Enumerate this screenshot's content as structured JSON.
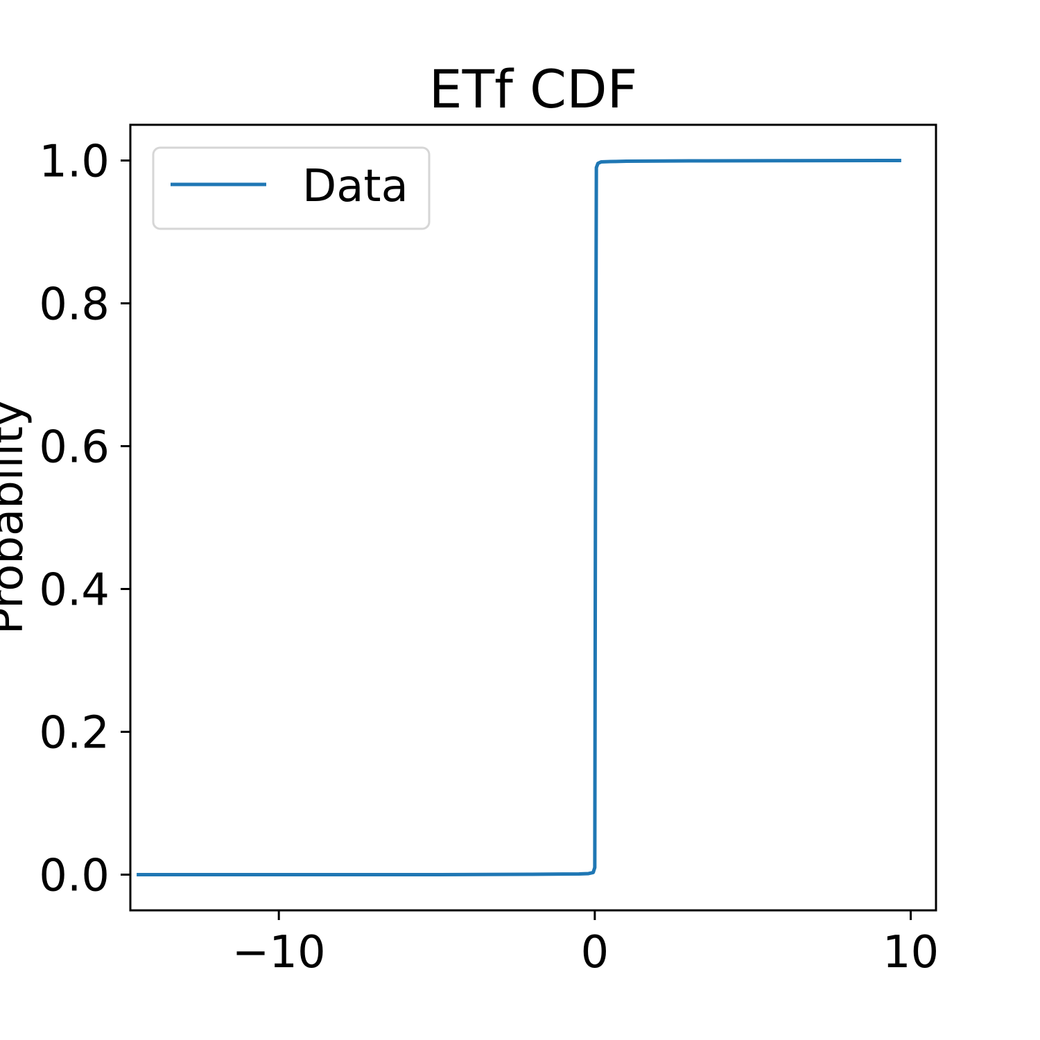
{
  "chart_data": {
    "type": "line",
    "title": "ETf CDF",
    "xlabel": "",
    "ylabel": "Probability",
    "xlim": [
      -14.7,
      10.8
    ],
    "ylim": [
      -0.05,
      1.05
    ],
    "xticks": [
      -10,
      0,
      10
    ],
    "xtick_labels": [
      "−10",
      "0",
      "10"
    ],
    "yticks": [
      0.0,
      0.2,
      0.4,
      0.6,
      0.8,
      1.0
    ],
    "ytick_labels": [
      "0.0",
      "0.2",
      "0.4",
      "0.6",
      "0.8",
      "1.0"
    ],
    "grid": false,
    "legend_position": "top-left",
    "series": [
      {
        "name": "Data",
        "color": "#1f77b4",
        "x": [
          -14.5,
          -10,
          -5,
          -2,
          -1,
          -0.5,
          -0.2,
          -0.05,
          0.0,
          0.02,
          0.05,
          0.1,
          0.2,
          0.5,
          1,
          3,
          6,
          9.7
        ],
        "y": [
          0.0,
          0.0,
          0.0,
          0.0005,
          0.0008,
          0.001,
          0.0015,
          0.003,
          0.01,
          0.5,
          0.99,
          0.996,
          0.998,
          0.9985,
          0.999,
          0.9995,
          0.9998,
          1.0
        ]
      }
    ]
  }
}
